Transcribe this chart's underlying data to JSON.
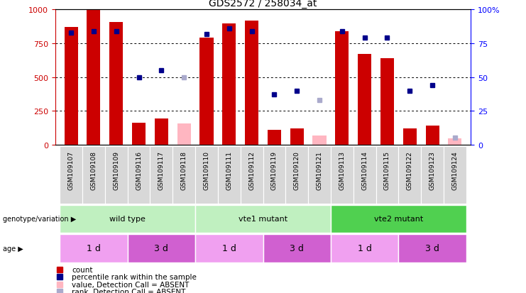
{
  "title": "GDS2572 / 258034_at",
  "samples": [
    "GSM109107",
    "GSM109108",
    "GSM109109",
    "GSM109116",
    "GSM109117",
    "GSM109118",
    "GSM109110",
    "GSM109111",
    "GSM109112",
    "GSM109119",
    "GSM109120",
    "GSM109121",
    "GSM109113",
    "GSM109114",
    "GSM109115",
    "GSM109122",
    "GSM109123",
    "GSM109124"
  ],
  "count_values": [
    870,
    1000,
    910,
    160,
    195,
    null,
    790,
    900,
    920,
    110,
    120,
    null,
    840,
    670,
    640,
    120,
    140,
    null
  ],
  "count_absent": [
    null,
    null,
    null,
    null,
    null,
    155,
    null,
    null,
    null,
    null,
    null,
    70,
    null,
    null,
    null,
    null,
    null,
    45
  ],
  "rank_values": [
    83,
    84,
    84,
    50,
    55,
    null,
    82,
    86,
    84,
    37,
    40,
    null,
    84,
    79,
    79,
    40,
    44,
    null
  ],
  "rank_absent": [
    null,
    null,
    null,
    null,
    null,
    50,
    null,
    null,
    null,
    null,
    null,
    33,
    null,
    null,
    null,
    null,
    null,
    5
  ],
  "bar_color": "#cc0000",
  "bar_absent_color": "#ffb6c1",
  "rank_color": "#00008b",
  "rank_absent_color": "#aaaacc",
  "ylim_left": [
    0,
    1000
  ],
  "ylim_right": [
    0,
    100
  ],
  "yticks_left": [
    0,
    250,
    500,
    750,
    1000
  ],
  "yticks_right": [
    0,
    25,
    50,
    75,
    100
  ],
  "genotype_groups": [
    {
      "label": "wild type",
      "start": 0,
      "end": 5,
      "color": "#c0f0c0"
    },
    {
      "label": "vte1 mutant",
      "start": 6,
      "end": 11,
      "color": "#c0f0c0"
    },
    {
      "label": "vte2 mutant",
      "start": 12,
      "end": 17,
      "color": "#50d050"
    }
  ],
  "age_groups": [
    {
      "label": "1 d",
      "start": 0,
      "end": 2,
      "color": "#f0a0f0"
    },
    {
      "label": "3 d",
      "start": 3,
      "end": 5,
      "color": "#d060d0"
    },
    {
      "label": "1 d",
      "start": 6,
      "end": 8,
      "color": "#f0a0f0"
    },
    {
      "label": "3 d",
      "start": 9,
      "end": 11,
      "color": "#d060d0"
    },
    {
      "label": "1 d",
      "start": 12,
      "end": 14,
      "color": "#f0a0f0"
    },
    {
      "label": "3 d",
      "start": 15,
      "end": 17,
      "color": "#d060d0"
    }
  ],
  "legend_items": [
    {
      "color": "#cc0000",
      "label": "count"
    },
    {
      "color": "#00008b",
      "label": "percentile rank within the sample"
    },
    {
      "color": "#ffb6c1",
      "label": "value, Detection Call = ABSENT"
    },
    {
      "color": "#aaaacc",
      "label": "rank, Detection Call = ABSENT"
    }
  ]
}
